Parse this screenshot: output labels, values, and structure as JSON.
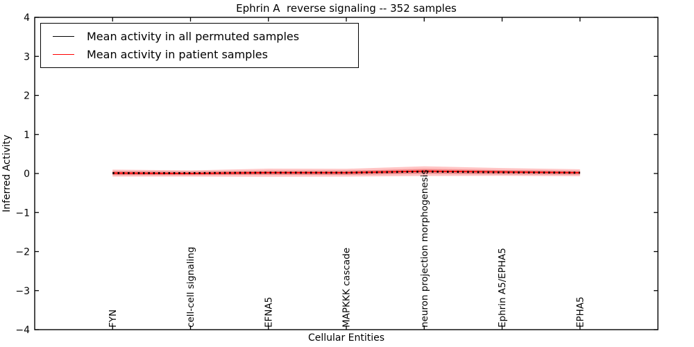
{
  "chart_data": {
    "type": "line",
    "title": "Ephrin A  reverse signaling -- 352 samples",
    "xlabel": "Cellular Entities",
    "ylabel": "Inferred Activity",
    "ylim": [
      -4,
      4
    ],
    "yticks": [
      -4,
      -3,
      -2,
      -1,
      0,
      1,
      2,
      3,
      4
    ],
    "ytick_labels": [
      "−4",
      "−3",
      "−2",
      "−1",
      "0",
      "1",
      "2",
      "3",
      "4"
    ],
    "categories": [
      "FYN",
      "cell-cell signaling",
      "EFNA5",
      "MAPKKK cascade",
      "neuron projection morphogenesis",
      "Ephrin A5/EPHA5",
      "EPHA5"
    ],
    "grid": false,
    "legend_position": "upper left",
    "series": [
      {
        "name": "Mean activity in all permuted samples",
        "color": "#000000",
        "line_style": "dotted-markers",
        "values": [
          0.01,
          0.01,
          0.02,
          0.02,
          0.05,
          0.03,
          0.02
        ],
        "band": [
          0.055,
          0.05,
          0.05,
          0.055,
          0.055,
          0.055,
          0.05
        ],
        "band_color": "rgba(0,0,0,0.14)"
      },
      {
        "name": "Mean activity in patient samples",
        "color": "#ff0000",
        "line_style": "solid",
        "values": [
          0.01,
          0.0,
          0.02,
          0.02,
          0.06,
          0.04,
          0.02
        ],
        "band": [
          0.09,
          0.08,
          0.105,
          0.1,
          0.125,
          0.1,
          0.09
        ],
        "band_color": "rgba(255,30,30,0.26)"
      }
    ]
  }
}
